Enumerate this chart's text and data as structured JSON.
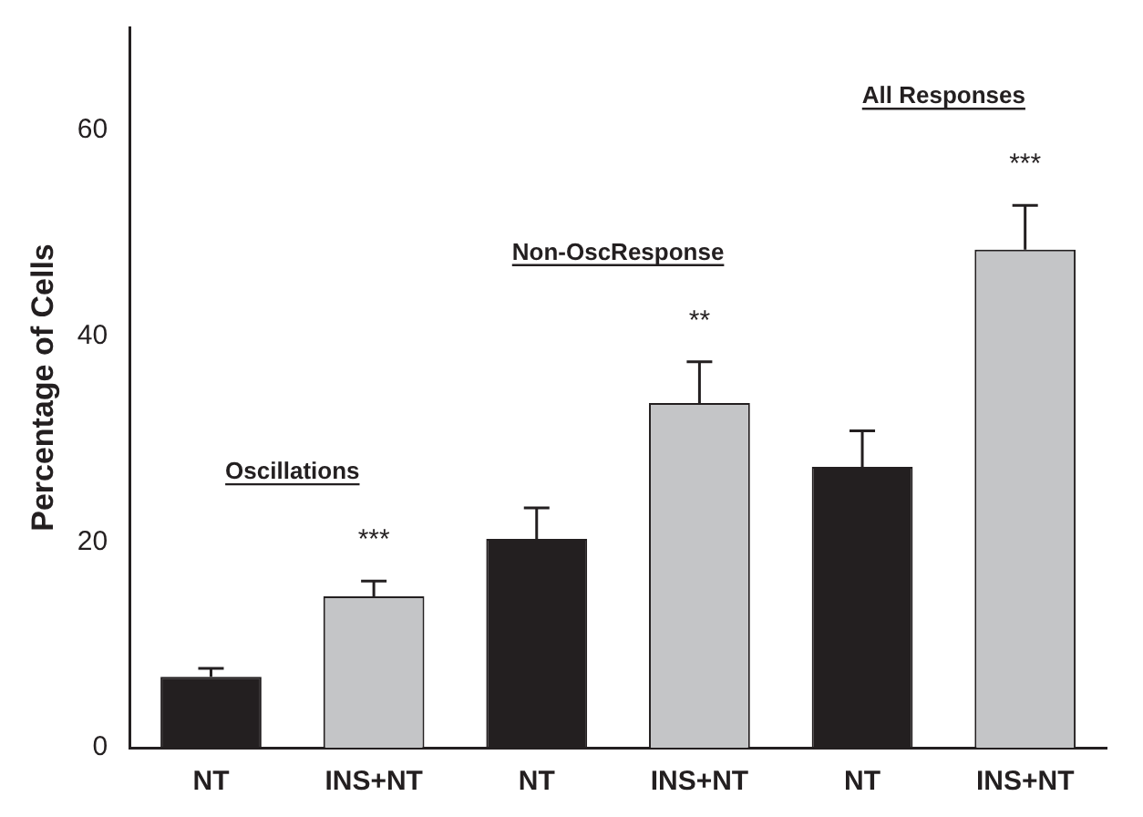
{
  "chart_data": {
    "type": "bar",
    "ylabel": "Percentage of Cells",
    "categories": [
      "NT",
      "INS+NT",
      "NT",
      "INS+NT",
      "NT",
      "INS+NT"
    ],
    "values": [
      6.9,
      14.7,
      20.3,
      33.5,
      27.3,
      48.4
    ],
    "colors": [
      "#231f20",
      "#c4c5c7",
      "#231f20",
      "#c4c5c7",
      "#231f20",
      "#c4c5c7"
    ],
    "errors": [
      [
        6.9,
        7.7
      ],
      [
        14.7,
        16.2
      ],
      [
        20.3,
        23.3
      ],
      [
        33.5,
        37.5
      ],
      [
        27.3,
        30.8
      ],
      [
        48.4,
        52.7
      ]
    ],
    "ylim": [
      0,
      70
    ],
    "yticks": [
      0,
      20,
      40,
      60
    ],
    "grid": false,
    "legend": false,
    "annotations": [
      "Oscillations",
      "***",
      "Non-OscResponse",
      "**",
      "All Responses",
      "***"
    ]
  }
}
